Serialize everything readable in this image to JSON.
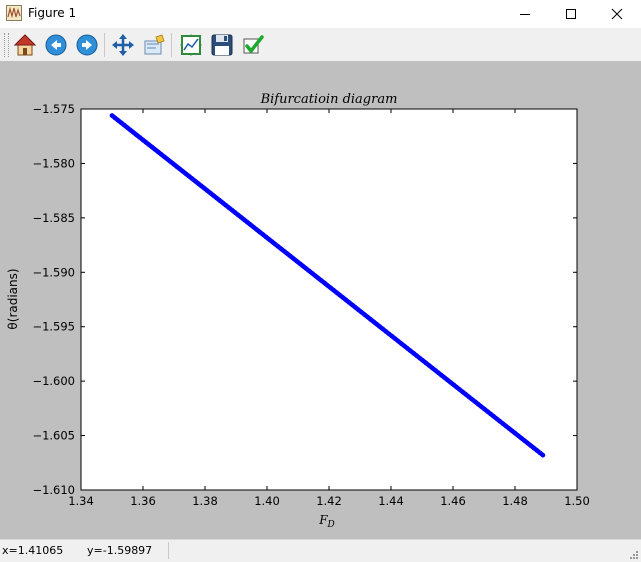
{
  "window": {
    "title": "Figure 1",
    "app_icon": "matplotlib-figure-icon"
  },
  "window_controls": {
    "minimize_icon": "minimize-icon",
    "maximize_icon": "maximize-icon",
    "close_icon": "close-icon"
  },
  "toolbar": {
    "buttons": [
      {
        "name": "home-button",
        "icon": "home-icon"
      },
      {
        "name": "back-button",
        "icon": "back-arrow-icon"
      },
      {
        "name": "forward-button",
        "icon": "forward-arrow-icon"
      },
      {
        "name": "pan-button",
        "icon": "pan-move-icon"
      },
      {
        "name": "zoom-button",
        "icon": "zoom-rect-icon"
      },
      {
        "name": "subplots-button",
        "icon": "configure-subplots-icon"
      },
      {
        "name": "save-button",
        "icon": "save-floppy-icon"
      },
      {
        "name": "edit-parameters-button",
        "icon": "checkmark-icon"
      }
    ]
  },
  "status": {
    "x_readout": "x=1.41065",
    "y_readout": "y=-1.59897"
  },
  "colors": {
    "series": "#0000ff",
    "figure_bg": "#bfbfbf",
    "axes_bg": "#ffffff"
  },
  "chart_data": {
    "type": "line",
    "title": "Bifurcatioin diagram",
    "xlabel": "F",
    "xlabel_subscript": "D",
    "ylabel": "θ(radians)",
    "xlim": [
      1.34,
      1.5
    ],
    "ylim": [
      -1.61,
      -1.575
    ],
    "xticks": [
      "1.34",
      "1.36",
      "1.38",
      "1.40",
      "1.42",
      "1.44",
      "1.46",
      "1.48",
      "1.50"
    ],
    "yticks": [
      "−1.575",
      "−1.580",
      "−1.585",
      "−1.590",
      "−1.595",
      "−1.600",
      "−1.605",
      "−1.610"
    ],
    "grid": false,
    "series": [
      {
        "x": [
          1.35,
          1.489
        ],
        "y": [
          -1.5756,
          -1.6068
        ]
      }
    ]
  }
}
